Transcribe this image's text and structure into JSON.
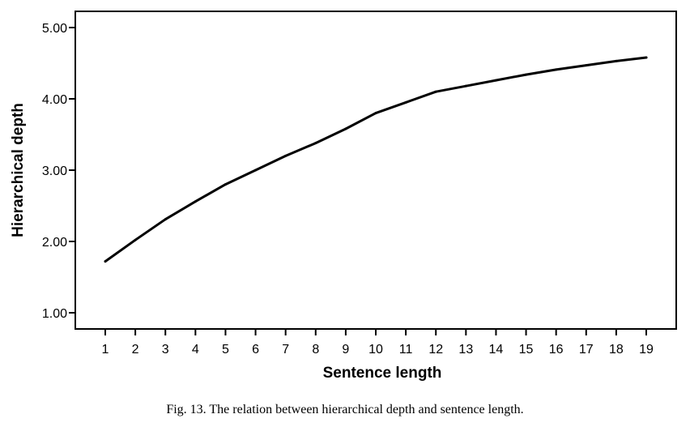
{
  "caption": "Fig. 13. The relation between hierarchical depth and sentence length.",
  "chart_data": {
    "type": "line",
    "xlabel": "Sentence length",
    "ylabel": "Hierarchical depth",
    "x": [
      1,
      2,
      3,
      4,
      5,
      6,
      7,
      8,
      9,
      10,
      11,
      12,
      13,
      14,
      15,
      16,
      17,
      18,
      19
    ],
    "series": [
      {
        "values": [
          1.72,
          2.02,
          2.31,
          2.56,
          2.8,
          3.0,
          3.2,
          3.38,
          3.58,
          3.8,
          3.95,
          4.1,
          4.18,
          4.26,
          4.34,
          4.41,
          4.47,
          4.53,
          4.58
        ],
        "color": "#000000"
      }
    ],
    "xlim": [
      0,
      20
    ],
    "ylim": [
      1.0,
      5.0
    ],
    "x_ticks": [
      "1",
      "2",
      "3",
      "4",
      "5",
      "6",
      "7",
      "8",
      "9",
      "10",
      "11",
      "12",
      "13",
      "14",
      "15",
      "16",
      "17",
      "18",
      "19"
    ],
    "y_ticks": [
      "1.00",
      "2.00",
      "3.00",
      "4.00",
      "5.00"
    ],
    "grid": false,
    "legend": "none"
  }
}
